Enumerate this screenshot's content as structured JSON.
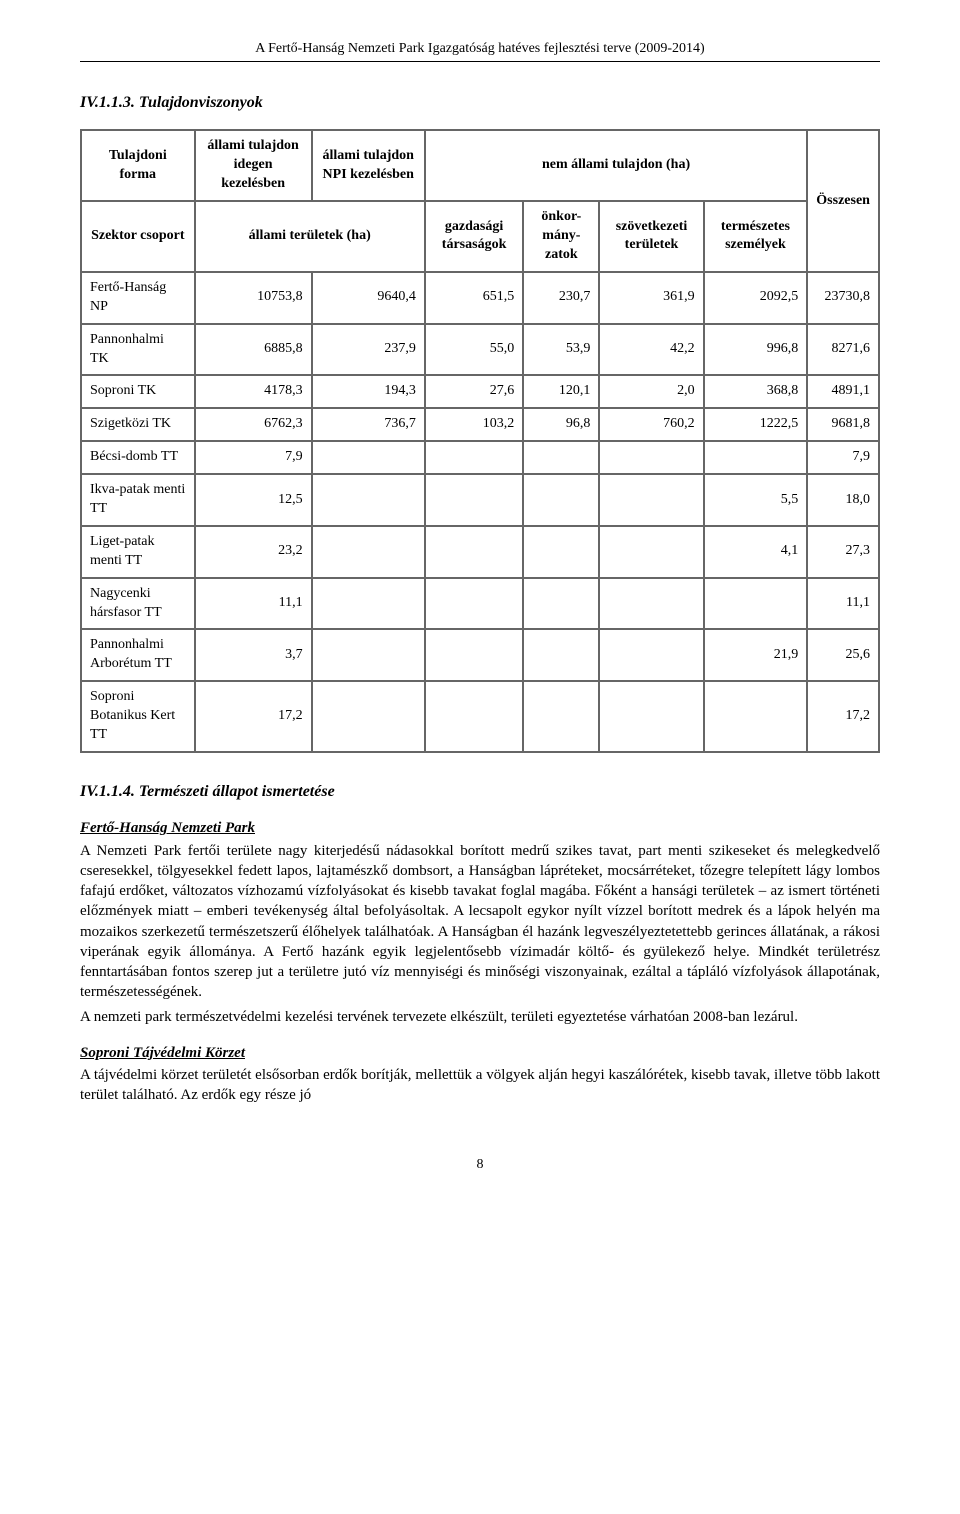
{
  "header": "A Fertő-Hanság Nemzeti Park Igazgatóság hatéves fejlesztési terve (2009-2014)",
  "section1_heading": "IV.1.1.3. Tulajdonviszonyok",
  "table": {
    "h_tulajdoni_forma": "Tulajdoni forma",
    "h_idegen": "állami tulajdon idegen kezelésben",
    "h_npi": "állami tulajdon NPI kezelésben",
    "h_nem_allami": "nem állami tulajdon (ha)",
    "h_osszesen": "Összesen",
    "h_szektor": "Szektor csoport",
    "h_allami_ter": "állami területek (ha)",
    "h_gazdasagi": "gazdasági társaságok",
    "h_onkor": "önkor-mány-zatok",
    "h_szov": "szövetkezeti területek",
    "h_term": "természetes személyek",
    "rows": [
      {
        "label": "Fertő-Hanság NP",
        "c": [
          "10753,8",
          "9640,4",
          "651,5",
          "230,7",
          "361,9",
          "2092,5",
          "23730,8"
        ]
      },
      {
        "label": "Pannonhalmi TK",
        "c": [
          "6885,8",
          "237,9",
          "55,0",
          "53,9",
          "42,2",
          "996,8",
          "8271,6"
        ]
      },
      {
        "label": "Soproni TK",
        "c": [
          "4178,3",
          "194,3",
          "27,6",
          "120,1",
          "2,0",
          "368,8",
          "4891,1"
        ]
      },
      {
        "label": "Szigetközi TK",
        "c": [
          "6762,3",
          "736,7",
          "103,2",
          "96,8",
          "760,2",
          "1222,5",
          "9681,8"
        ]
      },
      {
        "label": "Bécsi-domb TT",
        "c": [
          "7,9",
          "",
          "",
          "",
          "",
          "",
          "7,9"
        ]
      },
      {
        "label": "Ikva-patak menti TT",
        "c": [
          "12,5",
          "",
          "",
          "",
          "",
          "5,5",
          "18,0"
        ]
      },
      {
        "label": "Liget-patak menti TT",
        "c": [
          "23,2",
          "",
          "",
          "",
          "",
          "4,1",
          "27,3"
        ]
      },
      {
        "label": "Nagycenki hársfasor TT",
        "c": [
          "11,1",
          "",
          "",
          "",
          "",
          "",
          "11,1"
        ]
      },
      {
        "label": "Pannonhalmi Arborétum TT",
        "c": [
          "3,7",
          "",
          "",
          "",
          "",
          "21,9",
          "25,6"
        ]
      },
      {
        "label": "Soproni Botanikus Kert TT",
        "c": [
          "17,2",
          "",
          "",
          "",
          "",
          "",
          "17,2"
        ]
      }
    ]
  },
  "section2_heading": "IV.1.1.4. Természeti állapot ismertetése",
  "p1_heading": "Fertő-Hanság Nemzeti Park",
  "p1_body": "A Nemzeti Park fertői területe nagy kiterjedésű nádasokkal borított medrű szikes tavat, part menti szikeseket és melegkedvelő cseresekkel, tölgyesekkel fedett lapos, lajtamészkő dombsort, a Hanságban lápréteket, mocsárréteket, tőzegre telepített lágy lombos fafajú erdőket, változatos vízhozamú vízfolyásokat és kisebb tavakat foglal magába. Főként a hansági területek – az ismert történeti előzmények miatt – emberi tevékenység által befolyásoltak. A lecsapolt egykor nyílt vízzel borított medrek és a lápok helyén ma mozaikos szerkezetű természetszerű élőhelyek találhatóak. A Hanságban él hazánk legveszélyeztetettebb gerinces állatának, a rákosi viperának egyik állománya. A Fertő hazánk egyik legjelentősebb vízimadár költő- és gyülekező helye. Mindkét területrész fenntartásában fontos szerep jut a területre jutó víz mennyiségi és minőségi viszonyainak, ezáltal a tápláló vízfolyások állapotának, természetességének.",
  "p1_body2": "A nemzeti park természetvédelmi kezelési tervének tervezete elkészült, területi egyeztetése várhatóan 2008-ban lezárul.",
  "p2_heading": "Soproni Tájvédelmi Körzet",
  "p2_body": "A tájvédelmi körzet területét elsősorban erdők borítják, mellettük a völgyek alján hegyi kaszálórétek, kisebb tavak, illetve több lakott terület található. Az erdők egy része jó",
  "page_num": "8"
}
